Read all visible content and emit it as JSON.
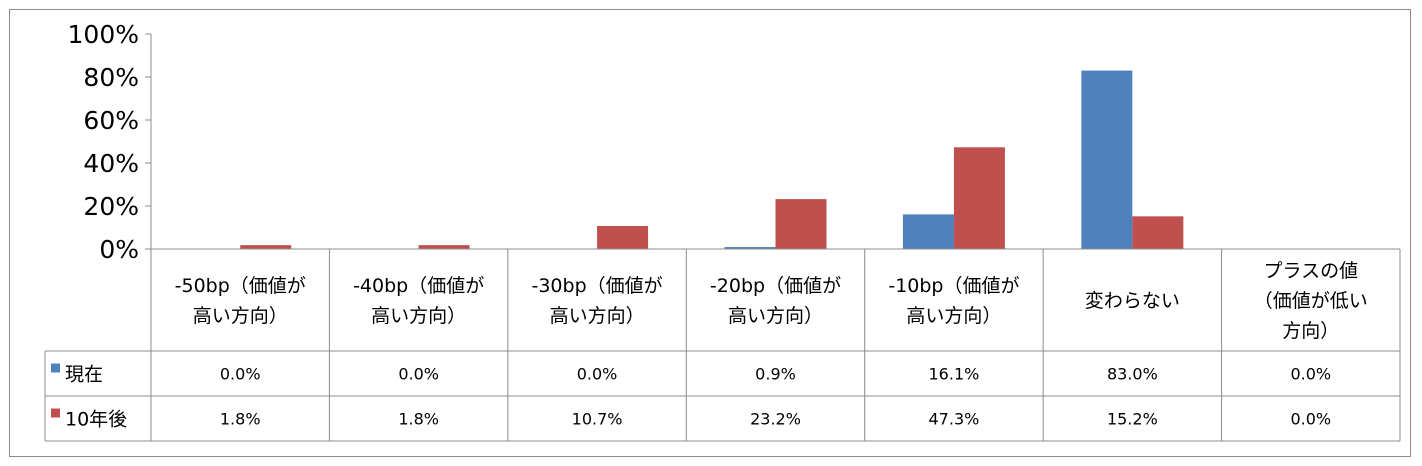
{
  "chart_data": {
    "type": "bar",
    "categories": [
      [
        "-50bp（価値が",
        "高い方向）"
      ],
      [
        "-40bp（価値が",
        "高い方向）"
      ],
      [
        "-30bp（価値が",
        "高い方向）"
      ],
      [
        "-20bp（価値が",
        "高い方向）"
      ],
      [
        "-10bp（価値が",
        "高い方向）"
      ],
      [
        "変わらない"
      ],
      [
        "プラスの値",
        "（価値が低い",
        "方向）"
      ]
    ],
    "series": [
      {
        "name": "現在",
        "color": "#4f81bd",
        "values": [
          0.0,
          0.0,
          0.0,
          0.9,
          16.1,
          83.0,
          0.0
        ],
        "labels": [
          "0.0%",
          "0.0%",
          "0.0%",
          "0.9%",
          "16.1%",
          "83.0%",
          "0.0%"
        ]
      },
      {
        "name": "10年後",
        "color": "#c0504d",
        "values": [
          1.8,
          1.8,
          10.7,
          23.2,
          47.3,
          15.2,
          0.0
        ],
        "labels": [
          "1.8%",
          "1.8%",
          "10.7%",
          "23.2%",
          "47.3%",
          "15.2%",
          "0.0%"
        ]
      }
    ],
    "ylim": [
      0,
      100
    ],
    "yticks": [
      "0%",
      "20%",
      "40%",
      "60%",
      "80%",
      "100%"
    ],
    "grid": false,
    "legend": "data-table"
  }
}
